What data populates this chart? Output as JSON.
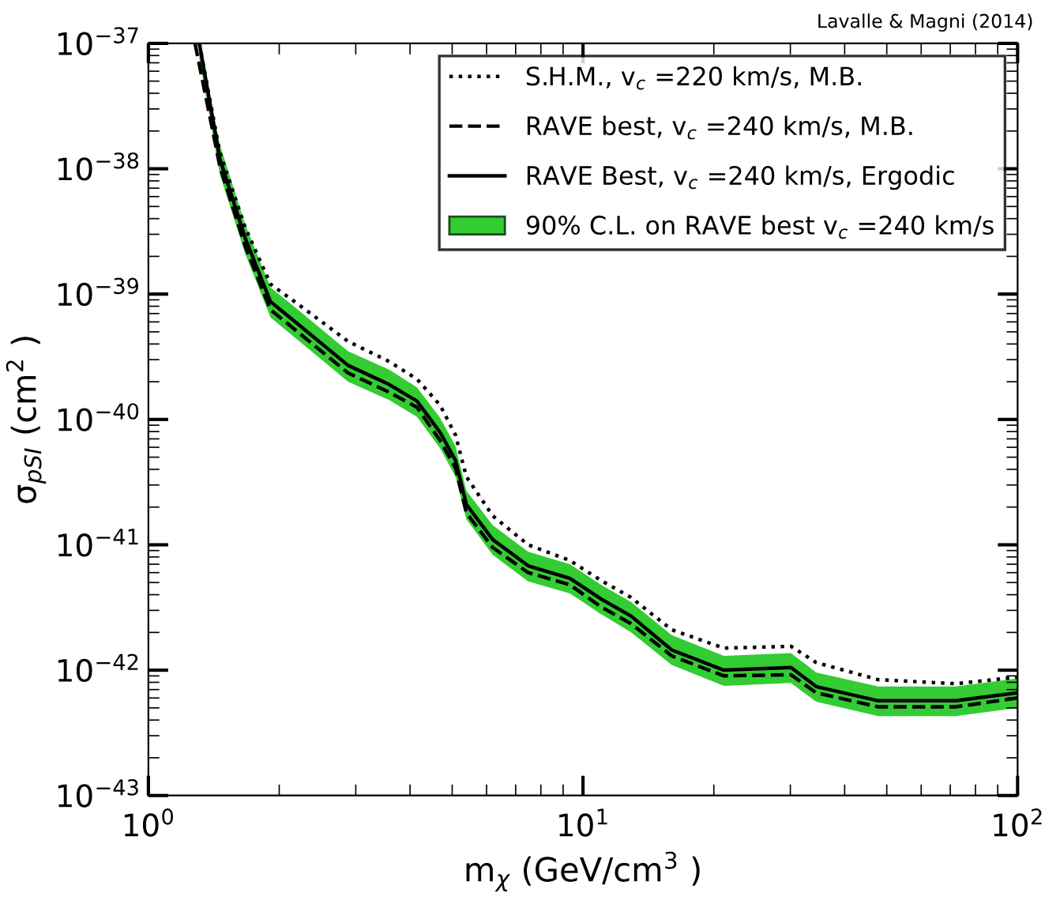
{
  "chart_data": {
    "type": "line",
    "xlabel": "m$_{χ}$ (GeV/cm$^{3}$ )",
    "ylabel": "σ$_{pSI}$ (cm$^{2}$ )",
    "annotations": [
      "Lavalle & Magni (2014)"
    ],
    "log": "xy",
    "xlim": [
      1,
      100
    ],
    "ylim": [
      1e-43,
      1e-37
    ],
    "xticks": [
      {
        "value": 1,
        "label": "10$^{0}$"
      },
      {
        "value": 10,
        "label": "10$^{1}$"
      },
      {
        "value": 100,
        "label": "10$^{2}$"
      }
    ],
    "yticks": [
      {
        "value": 1e-43,
        "label": "10$^{−43}$"
      },
      {
        "value": 1e-42,
        "label": "10$^{−42}$"
      },
      {
        "value": 1e-41,
        "label": "10$^{−41}$"
      },
      {
        "value": 1e-40,
        "label": "10$^{−40}$"
      },
      {
        "value": 1e-39,
        "label": "10$^{−39}$"
      },
      {
        "value": 1e-38,
        "label": "10$^{−38}$"
      },
      {
        "value": 1e-37,
        "label": "10$^{−37}$"
      }
    ],
    "grid": false,
    "legend": "top right",
    "series": [
      {
        "name": "S.H.M., v$_{c}$ =220 km/s, M.B.",
        "line_style": "dotted",
        "color": "#000000",
        "x": [
          1.31,
          1.46,
          1.67,
          1.91,
          2.19,
          2.88,
          3.58,
          4.15,
          4.69,
          5.09,
          5.39,
          6.2,
          7.48,
          9.33,
          11.0,
          12.9,
          16.0,
          21.1,
          30.1,
          34.4,
          47.8,
          72,
          100
        ],
        "values": [
          1e-37,
          1.35e-38,
          3.4e-39,
          1.2e-39,
          8.5e-40,
          4.2e-40,
          2.9e-40,
          2.1e-40,
          1.3e-40,
          7.5e-41,
          3.5e-41,
          1.7e-41,
          1e-41,
          7.5e-42,
          5.2e-42,
          3.8e-42,
          2.1e-42,
          1.5e-42,
          1.55e-42,
          1.15e-42,
          8.4e-43,
          7.8e-43,
          8.8e-43
        ]
      },
      {
        "name": "RAVE best, v$_{c}$ =240 km/s, M.B.",
        "line_style": "dashed",
        "color": "#000000",
        "x": [
          1.28,
          1.46,
          1.67,
          1.91,
          2.19,
          2.88,
          3.58,
          4.15,
          4.69,
          5.09,
          5.39,
          6.2,
          7.48,
          9.33,
          11.0,
          12.9,
          16.0,
          21.1,
          30.1,
          34.4,
          47.8,
          72,
          100
        ],
        "values": [
          1e-37,
          1.05e-38,
          2.4e-39,
          7.5e-40,
          5.1e-40,
          2.35e-40,
          1.65e-40,
          1.25e-40,
          6.8e-41,
          4.1e-41,
          1.8e-41,
          9.5e-42,
          6e-42,
          4.8e-42,
          3.2e-42,
          2.35e-42,
          1.3e-42,
          9e-43,
          9.2e-43,
          6.6e-43,
          5.1e-43,
          5.1e-43,
          6e-43
        ]
      },
      {
        "name": "RAVE Best, v$_{c}$ =240 km/s, Ergodic",
        "line_style": "solid",
        "color": "#000000",
        "x": [
          1.31,
          1.46,
          1.67,
          1.91,
          2.19,
          2.88,
          3.58,
          4.15,
          4.69,
          5.09,
          5.39,
          6.2,
          7.48,
          9.33,
          11.0,
          12.9,
          16.0,
          21.1,
          30.1,
          34.4,
          47.8,
          72,
          100
        ],
        "values": [
          1e-37,
          1.2e-38,
          2.8e-39,
          8.7e-40,
          5.9e-40,
          2.7e-40,
          1.9e-40,
          1.4e-40,
          7.9e-41,
          4.7e-41,
          2.1e-41,
          1.1e-41,
          6.8e-42,
          5.4e-42,
          3.7e-42,
          2.7e-42,
          1.45e-42,
          1e-42,
          1.05e-42,
          7.4e-43,
          5.7e-43,
          5.7e-43,
          6.6e-43
        ]
      },
      {
        "name": "90% C.L. on RAVE best v$_{c}$ =240 km/s",
        "type": "area",
        "color": "#33cc33",
        "x": [
          1.31,
          1.46,
          1.67,
          1.91,
          2.19,
          2.88,
          3.58,
          4.15,
          4.69,
          5.09,
          5.39,
          6.2,
          7.48,
          9.33,
          11.0,
          12.9,
          16.0,
          21.1,
          30.1,
          34.4,
          47.8,
          72,
          100
        ],
        "values": [
          null,
          null,
          null,
          null,
          null,
          null,
          null,
          null,
          null,
          null,
          null,
          null,
          null,
          null,
          null,
          null,
          null,
          null,
          null,
          null,
          null,
          null,
          null
        ],
        "lower": [
          7.5e-38,
          9e-39,
          2.1e-39,
          6.5e-40,
          4.4e-40,
          2e-40,
          1.43e-40,
          1.05e-40,
          5.9e-41,
          3.5e-41,
          1.6e-41,
          8.3e-42,
          5.1e-42,
          4.1e-42,
          2.8e-42,
          2e-42,
          1.1e-42,
          7.5e-43,
          7.9e-43,
          5.6e-43,
          4.3e-43,
          4.3e-43,
          5e-43
        ],
        "upper": [
          1e-37,
          1.56e-38,
          3.6e-39,
          1.13e-39,
          7.7e-40,
          3.5e-40,
          2.5e-40,
          1.8e-40,
          1.03e-40,
          6.1e-41,
          2.7e-41,
          1.43e-41,
          8.8e-42,
          7e-42,
          4.8e-42,
          3.5e-42,
          1.9e-42,
          1.3e-42,
          1.37e-42,
          9.6e-43,
          7.4e-43,
          7.4e-43,
          8.6e-43
        ]
      }
    ]
  }
}
